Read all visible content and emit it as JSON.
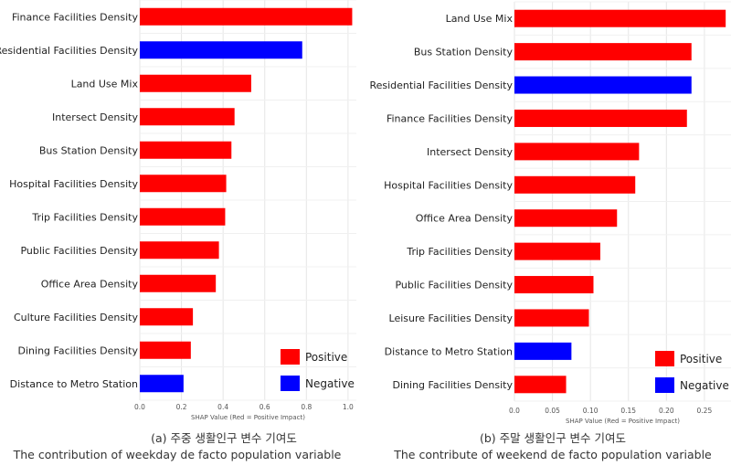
{
  "colors": {
    "positive": "#ff0000",
    "negative": "#0000ff",
    "grid": "#e6e6e6",
    "text": "#222222"
  },
  "chart_data": [
    {
      "type": "bar",
      "orientation": "horizontal",
      "xlabel": "SHAP Value (Red = Positive Impact)",
      "xlim": [
        0,
        1.04
      ],
      "xticks": [
        0,
        0.2,
        0.4,
        0.6,
        0.8,
        1.0
      ],
      "xtick_labels": [
        "0.0",
        "0.2",
        "0.4",
        "0.6",
        "0.8",
        "1.0"
      ],
      "grid": true,
      "legend_position": "bottom-right",
      "legend": [
        {
          "label": "Positive",
          "color": "#ff0000"
        },
        {
          "label": "Negative",
          "color": "#0000ff"
        }
      ],
      "categories": [
        "Finance Facilities Density",
        "Residential Facilities Density",
        "Land Use Mix",
        "Intersect Density",
        "Bus Station Density",
        "Hospital Facilities Density",
        "Trip Facilities Density",
        "Public Facilities Density",
        "Office Area Density",
        "Culture Facilities Density",
        "Dining Facilities Density",
        "Distance to Metro Station"
      ],
      "values": [
        1.02,
        0.78,
        0.535,
        0.455,
        0.44,
        0.415,
        0.41,
        0.38,
        0.365,
        0.255,
        0.245,
        0.21
      ],
      "sign": [
        "positive",
        "negative",
        "positive",
        "positive",
        "positive",
        "positive",
        "positive",
        "positive",
        "positive",
        "positive",
        "positive",
        "negative"
      ],
      "caption_line1": "(a) 주중 생활인구 변수 기여도",
      "caption_line2": "The contribution of weekday de facto population variable"
    },
    {
      "type": "bar",
      "orientation": "horizontal",
      "xlabel": "SHAP Value (Red = Positive Impact)",
      "xlim": [
        0,
        0.285
      ],
      "xticks": [
        0,
        0.05,
        0.1,
        0.15,
        0.2,
        0.25
      ],
      "xtick_labels": [
        "0.0",
        "0.05",
        "0.10",
        "0.15",
        "0.20",
        "0.25"
      ],
      "grid": true,
      "legend_position": "bottom-right",
      "legend": [
        {
          "label": "Positive",
          "color": "#ff0000"
        },
        {
          "label": "Negative",
          "color": "#0000ff"
        }
      ],
      "categories": [
        "Land Use Mix",
        "Bus Station Density",
        "Residential Facilities Density",
        "Finance Facilities Density",
        "Intersect Density",
        "Hospital Facilities Density",
        "Office Area Density",
        "Trip Facilities Density",
        "Public Facilities Density",
        "Leisure Facilities Density",
        "Distance to Metro Station",
        "Dining Facilities Density"
      ],
      "values": [
        0.278,
        0.233,
        0.233,
        0.227,
        0.164,
        0.159,
        0.135,
        0.113,
        0.104,
        0.098,
        0.075,
        0.068
      ],
      "sign": [
        "positive",
        "positive",
        "negative",
        "positive",
        "positive",
        "positive",
        "positive",
        "positive",
        "positive",
        "positive",
        "negative",
        "positive"
      ],
      "caption_line1": "(b) 주말 생활인구 변수 기여도",
      "caption_line2": "The contribute of weekend de facto population variable"
    }
  ]
}
